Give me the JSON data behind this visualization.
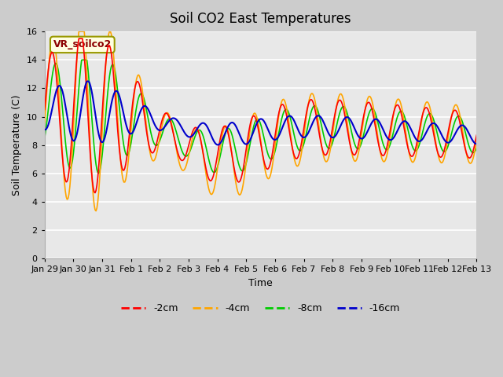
{
  "title": "Soil CO2 East Temperatures",
  "xlabel": "Time",
  "ylabel": "Soil Temperature (C)",
  "annotation": "VR_soilco2",
  "ylim": [
    0,
    16
  ],
  "line_colors": {
    "-2cm": "#ff0000",
    "-4cm": "#ffa500",
    "-8cm": "#00cc00",
    "-16cm": "#0000cc"
  },
  "x_tick_labels": [
    "Jan 29",
    "Jan 30",
    "Jan 31",
    "Feb 1",
    "Feb 2",
    "Feb 3",
    "Feb 4",
    "Feb 5",
    "Feb 6",
    "Feb 7",
    "Feb 8",
    "Feb 9",
    "Feb 10",
    "Feb 11",
    "Feb 12",
    "Feb 13"
  ],
  "n_points": 480,
  "days": 15
}
